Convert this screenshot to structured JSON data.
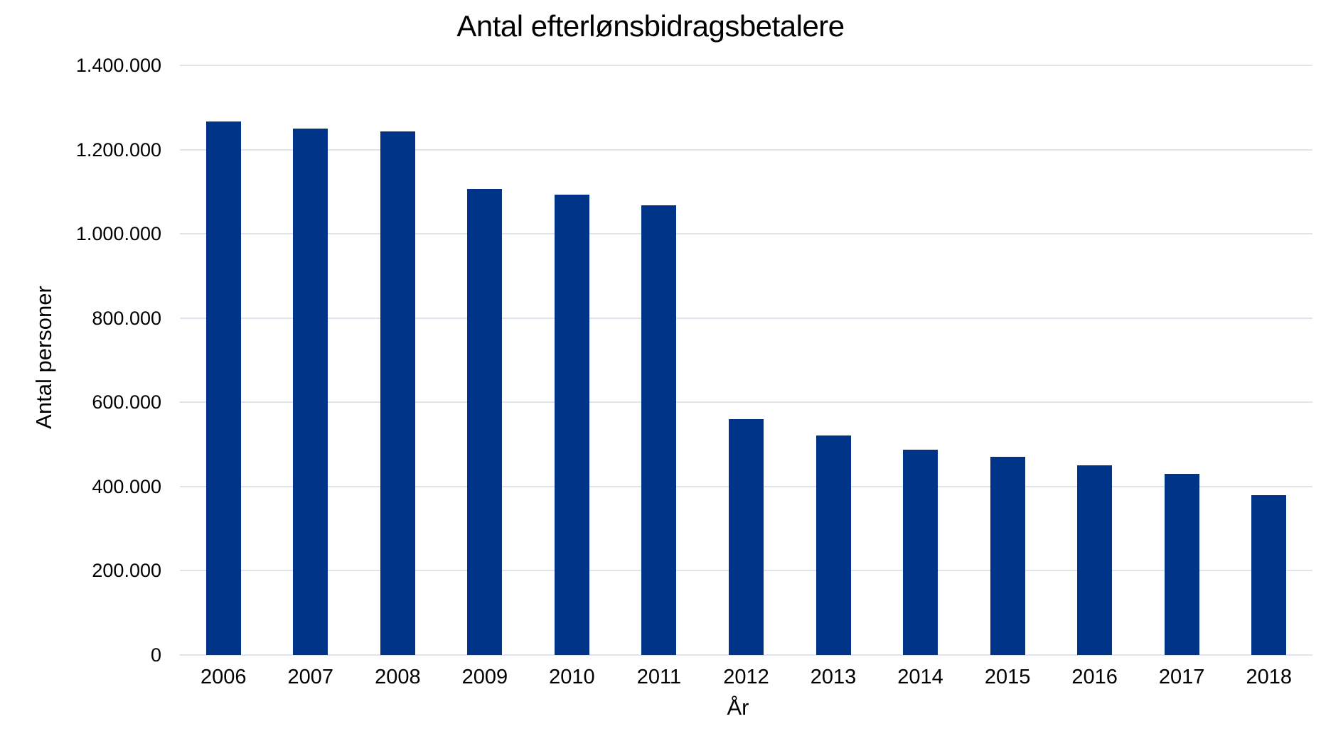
{
  "chart_data": {
    "type": "bar",
    "title": "Antal efterlønsbidragsbetalere",
    "xlabel": "År",
    "ylabel": "Antal personer",
    "categories": [
      "2006",
      "2007",
      "2008",
      "2009",
      "2010",
      "2011",
      "2012",
      "2013",
      "2014",
      "2015",
      "2016",
      "2017",
      "2018"
    ],
    "values": [
      1267000,
      1250000,
      1243000,
      1106000,
      1093000,
      1067000,
      560000,
      521000,
      488000,
      470000,
      451000,
      430000,
      379000
    ],
    "ylim": [
      0,
      1400000
    ],
    "ytick_interval": 200000,
    "ytick_labels": [
      "0",
      "200.000",
      "400.000",
      "600.000",
      "800.000",
      "1.000.000",
      "1.200.000",
      "1.400.000"
    ],
    "grid": "horizontal",
    "legend": "none",
    "colors": {
      "bar": "#003489",
      "gridline": "#dfe4ed",
      "text": "#000000",
      "background": "#ffffff"
    }
  }
}
